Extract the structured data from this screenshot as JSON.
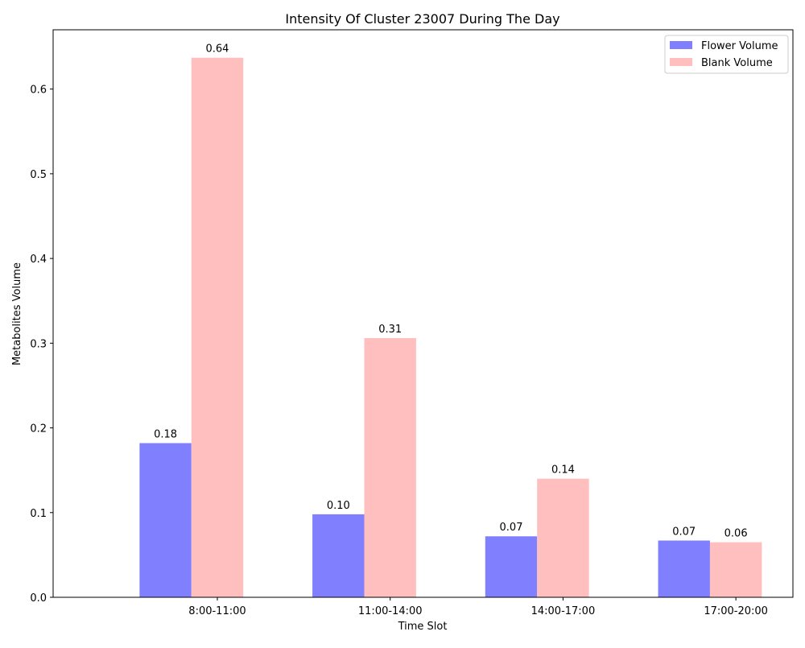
{
  "chart_data": {
    "type": "bar",
    "title": "Intensity Of Cluster 23007 During The Day",
    "xlabel": "Time Slot",
    "ylabel": "Metabolites Volume",
    "categories": [
      "8:00-11:00",
      "11:00-14:00",
      "14:00-17:00",
      "17:00-20:00"
    ],
    "series": [
      {
        "name": "Flower Volume",
        "values": [
          0.182,
          0.098,
          0.072,
          0.067
        ],
        "labels": [
          "0.18",
          "0.10",
          "0.07",
          "0.07"
        ],
        "color": "#8080ff"
      },
      {
        "name": "Blank Volume",
        "values": [
          0.637,
          0.306,
          0.14,
          0.065
        ],
        "labels": [
          "0.64",
          "0.31",
          "0.14",
          "0.06"
        ],
        "color": "#ffbfbf"
      }
    ],
    "ylim": [
      0,
      0.67
    ],
    "yticks": [
      0.0,
      0.1,
      0.2,
      0.3,
      0.4,
      0.5,
      0.6
    ],
    "ytick_labels": [
      "0.0",
      "0.1",
      "0.2",
      "0.3",
      "0.4",
      "0.5",
      "0.6"
    ],
    "grid": false,
    "legend_position": "top-right"
  }
}
